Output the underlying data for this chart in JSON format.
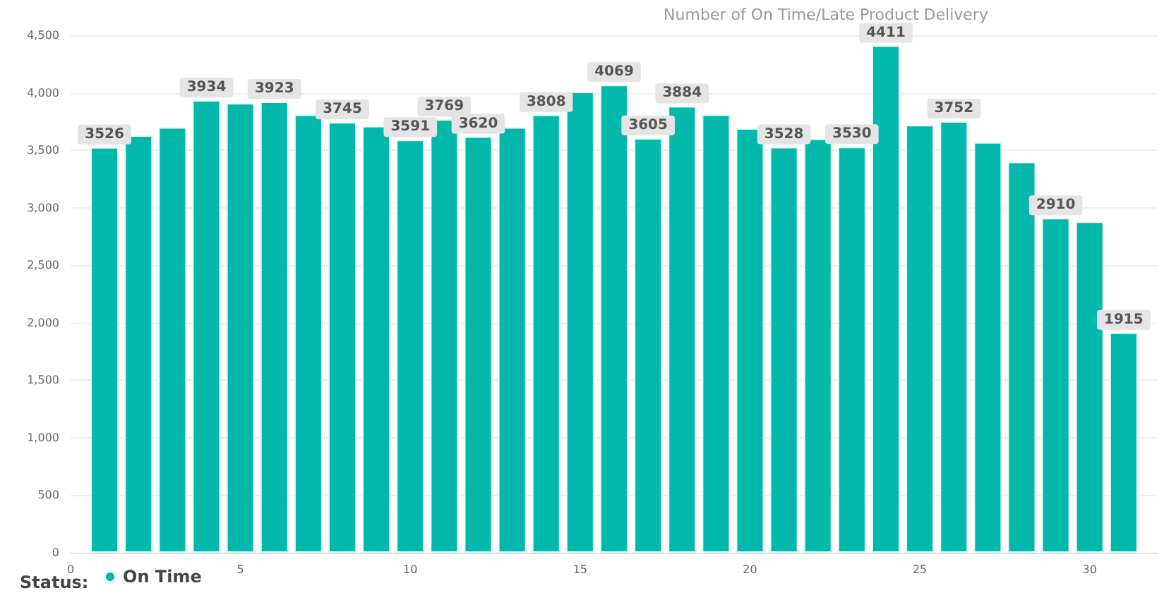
{
  "chart_data": {
    "type": "bar",
    "title": "Number of On Time/Late Product Delivery",
    "legend_title": "Status:",
    "x": [
      1,
      2,
      3,
      4,
      5,
      6,
      7,
      8,
      9,
      10,
      11,
      12,
      13,
      14,
      15,
      16,
      17,
      18,
      19,
      20,
      21,
      22,
      23,
      24,
      25,
      26,
      27,
      28,
      29,
      30,
      31
    ],
    "series": [
      {
        "name": "On Time",
        "color": "#01b8aa",
        "values": [
          3526,
          3630,
          3700,
          3934,
          3910,
          3923,
          3810,
          3745,
          3710,
          3591,
          3769,
          3620,
          3700,
          3808,
          4010,
          4069,
          3605,
          3884,
          3810,
          3690,
          3528,
          3600,
          3530,
          4411,
          3720,
          3752,
          3570,
          3400,
          2910,
          2880,
          1915
        ],
        "value_labels": [
          "3526",
          null,
          null,
          "3934",
          null,
          "3923",
          null,
          "3745",
          null,
          "3591",
          "3769",
          "3620",
          null,
          "3808",
          null,
          "4069",
          "3605",
          "3884",
          null,
          null,
          "3528",
          null,
          "3530",
          "4411",
          null,
          "3752",
          null,
          null,
          "2910",
          null,
          "1915"
        ]
      }
    ],
    "xlim": [
      0,
      32
    ],
    "xticks": [
      0,
      5,
      10,
      15,
      20,
      25,
      30
    ],
    "ylim": [
      0,
      4500
    ],
    "yticks": [
      0,
      500,
      {
        "value": 1000,
        "label": "1,000"
      },
      {
        "value": 1500,
        "label": "1,500"
      },
      {
        "value": 2000,
        "label": "2,000"
      },
      {
        "value": 2500,
        "label": "2,500"
      },
      {
        "value": 3000,
        "label": "3,000"
      },
      {
        "value": 3500,
        "label": "3,500"
      },
      {
        "value": 4000,
        "label": "4,000"
      },
      {
        "value": 4500,
        "label": "4,500"
      }
    ],
    "grid": "y",
    "legend": "bottom left"
  }
}
